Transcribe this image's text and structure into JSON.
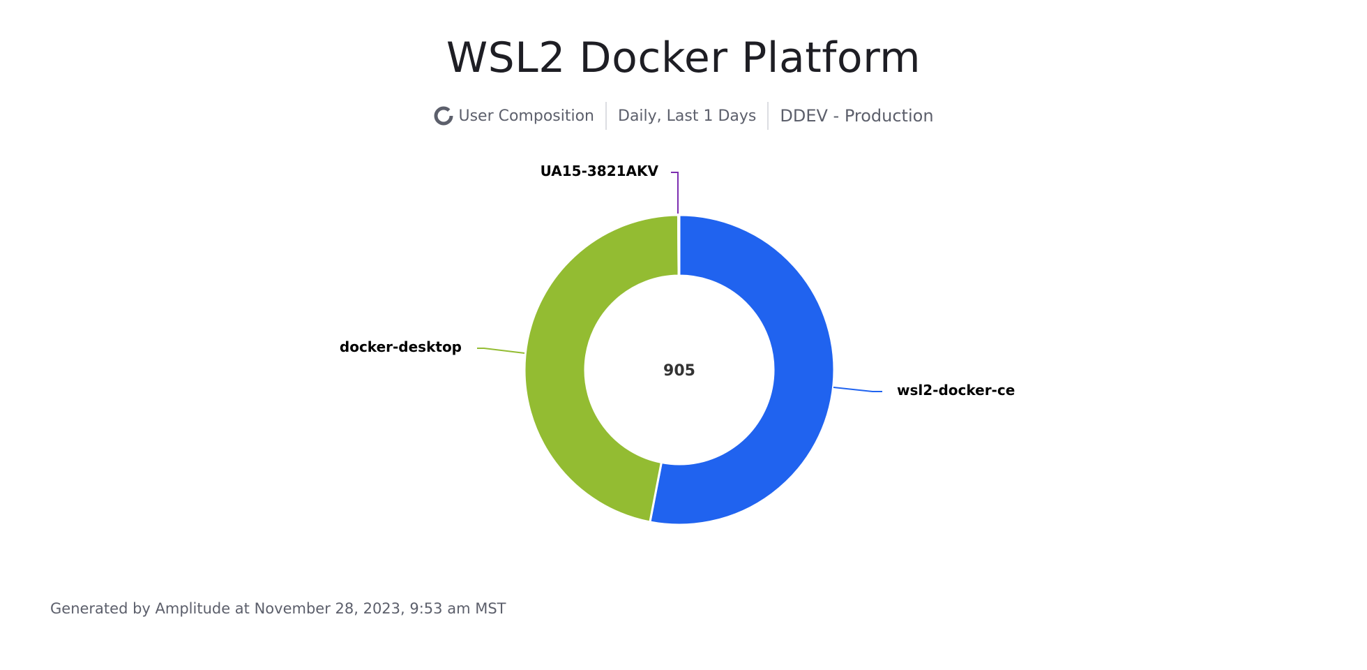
{
  "title": "WSL2 Docker Platform",
  "subtitle": {
    "chart_kind_icon": "donut-icon",
    "chart_kind": "User Composition",
    "interval": "Daily, Last 1 Days",
    "project": "DDEV - Production"
  },
  "footer": "Generated by Amplitude at November 28, 2023, 9:53 am MST",
  "chart_data": {
    "type": "pie",
    "style": "donut",
    "center_label": "905",
    "slices": [
      {
        "label": "wsl2-docker-ce",
        "value": 480,
        "color": "#2063ef"
      },
      {
        "label": "docker-desktop",
        "value": 424,
        "color": "#93bc32"
      },
      {
        "label": "UA15-3821AKV",
        "value": 1,
        "color": "#7d2eb0"
      }
    ]
  }
}
